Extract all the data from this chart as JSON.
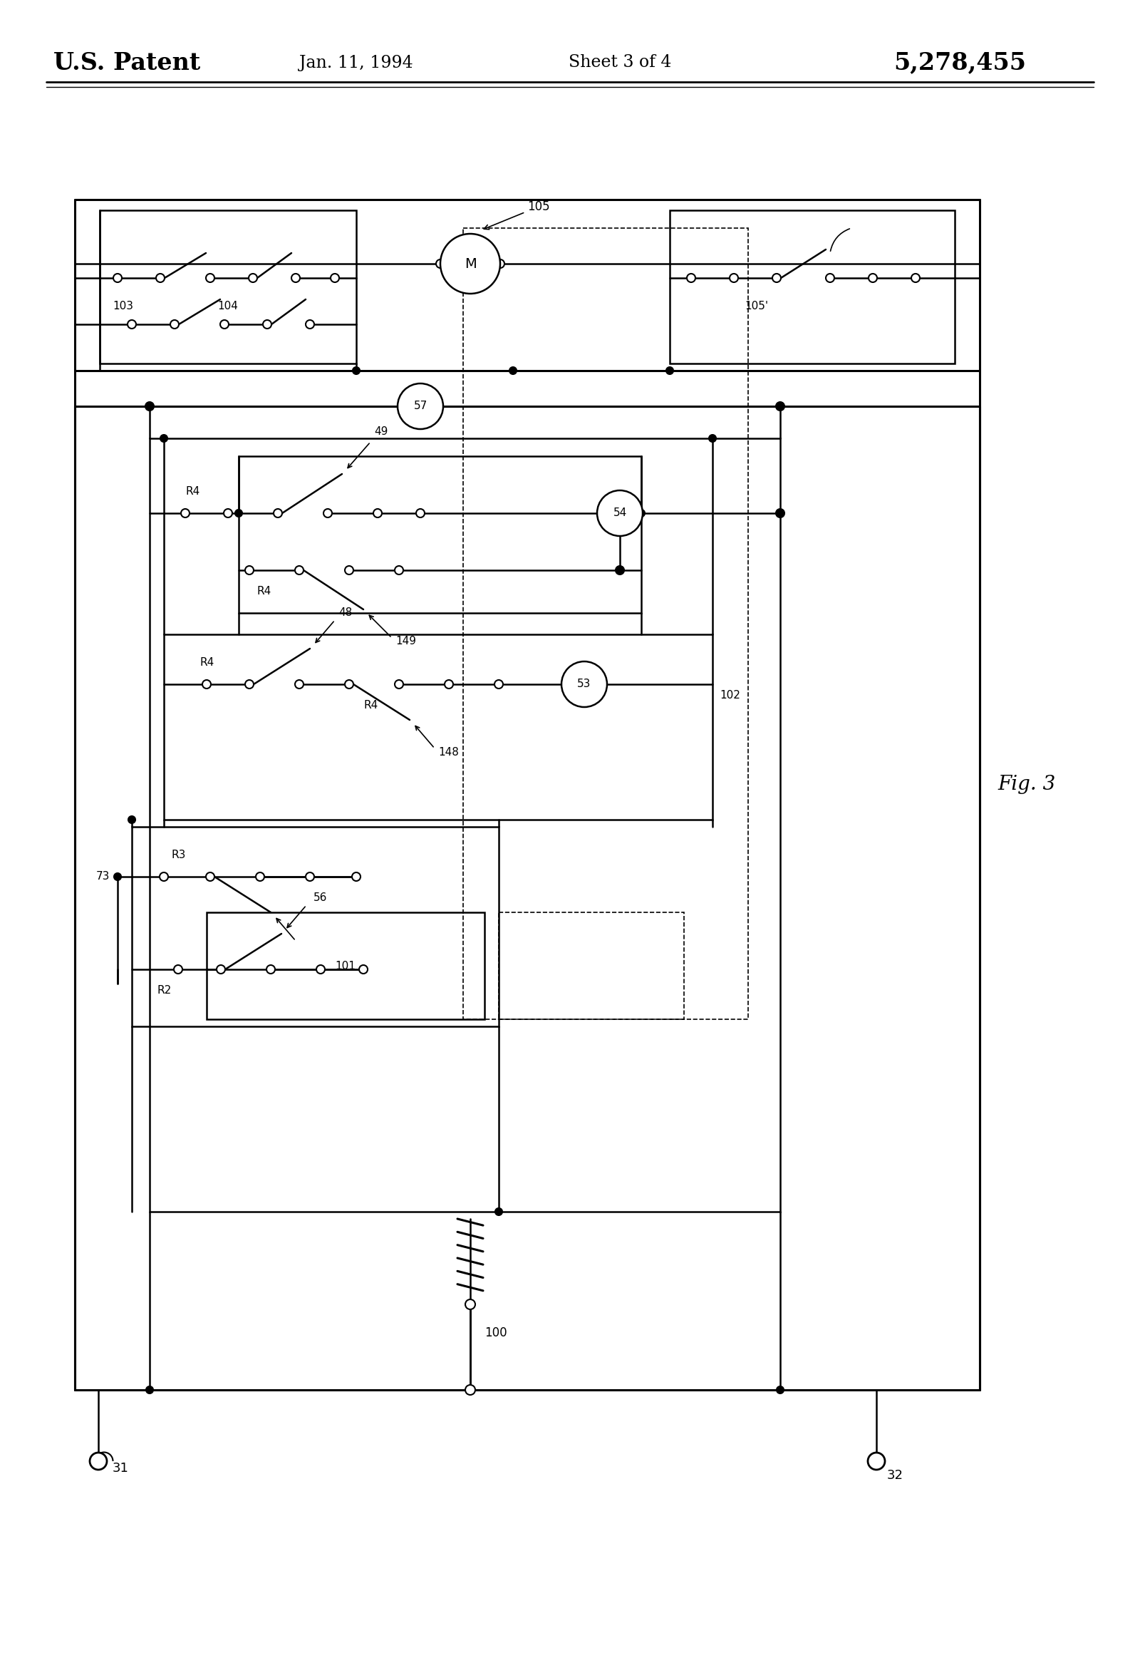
{
  "title": "U.S. Patent",
  "date": "Jan. 11, 1994",
  "sheet": "Sheet 3 of 4",
  "patent_num": "5,278,455",
  "fig_label": "Fig. 3",
  "bg_color": "#ffffff",
  "line_color": "#000000"
}
